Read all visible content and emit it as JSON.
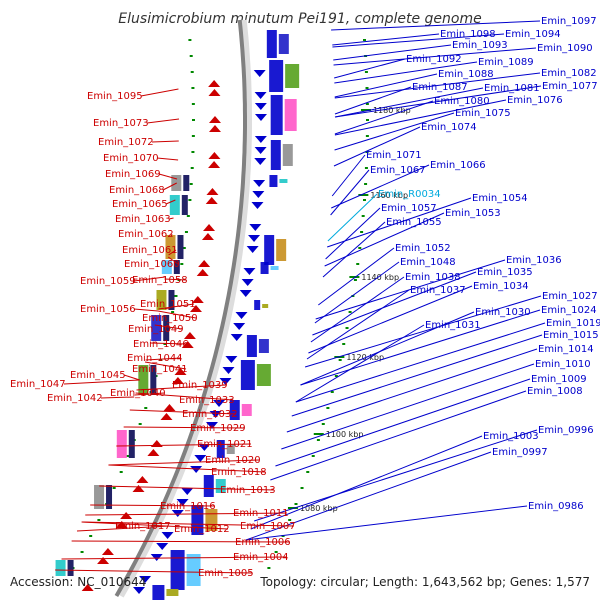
{
  "title": "Elusimicrobium minutum Pei191, complete genome",
  "footer": {
    "accession": "Accession: NC_010644",
    "summary": "Topology: circular; Length: 1,643,562 bp; Genes: 1,577"
  },
  "colors": {
    "forward": "#0000cc",
    "reverse": "#cc0000",
    "rna": "#00aadd",
    "backbone": "#808080",
    "tick": "#008800"
  },
  "kbp_marks": [
    "1180 kbp",
    "1160 kbp",
    "1140 kbp",
    "1120 kbp",
    "1100 kbp",
    "1080 kbp"
  ],
  "labels_right": [
    "Emin_1097",
    "Emin_1098",
    "Emin_1094",
    "Emin_1093",
    "Emin_1090",
    "Emin_1092",
    "Emin_1089",
    "Emin_1088",
    "Emin_1082",
    "Emin_1087",
    "Emin_1081",
    "Emin_1077",
    "Emin_1080",
    "Emin_1076",
    "Emin_1075",
    "Emin_1074",
    "Emin_1071",
    "Emin_1066",
    "Emin_1067",
    "Emin_R0034",
    "Emin_1054",
    "Emin_1057",
    "Emin_1053",
    "Emin_1055",
    "Emin_1052",
    "Emin_1036",
    "Emin_1048",
    "Emin_1035",
    "Emin_1038",
    "Emin_1034",
    "Emin_1037",
    "Emin_1027",
    "Emin_1030",
    "Emin_1024",
    "Emin_1031",
    "Emin_1019",
    "Emin_1015",
    "Emin_1014",
    "Emin_1010",
    "Emin_1009",
    "Emin_1008",
    "Emin_0996",
    "Emin_1003",
    "Emin_0997",
    "Emin_0986"
  ],
  "labels_left": [
    "Emin_1095",
    "Emin_1073",
    "Emin_1072",
    "Emin_1070",
    "Emin_1069",
    "Emin_1068",
    "Emin_1065",
    "Emin_1063",
    "Emin_1062",
    "Emin_1061",
    "Emin_1060",
    "Emin_1059",
    "Emin_1058",
    "Emin_1056",
    "Emin_1051",
    "Emin_1050",
    "Emin_1049",
    "Emin_1046",
    "Emin_1044",
    "Emin_1045",
    "Emin_1041",
    "Emin_1047",
    "Emin_1042",
    "Emin_1040",
    "Emin_1039",
    "Emin_1033",
    "Emin_1032",
    "Emin_1029",
    "Emin_1021",
    "Emin_1020",
    "Emin_1018",
    "Emin_1013",
    "Emin_1016",
    "Emin_1011",
    "Emin_1017",
    "Emin_1012",
    "Emin_1007",
    "Emin_1006",
    "Emin_1004",
    "Emin_1005"
  ]
}
